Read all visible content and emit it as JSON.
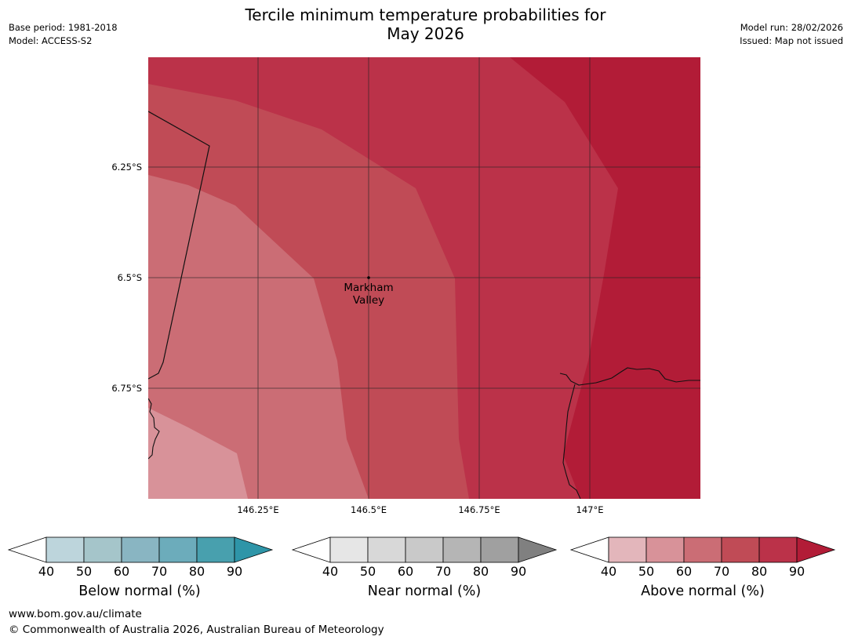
{
  "header": {
    "title_line1": "Tercile minimum temperature probabilities for",
    "title_line2": "May 2026",
    "base_period": "Base period: 1981-2018",
    "model": "Model: ACCESS-S2",
    "model_run": "Model run: 28/02/2026",
    "issued": "Issued: Map not issued"
  },
  "map": {
    "latitude_labels": [
      "6.25°S",
      "6.5°S",
      "6.75°S"
    ],
    "longitude_labels": [
      "146.25°E",
      "146.5°E",
      "146.75°E",
      "147°E"
    ],
    "place": {
      "name_line1": "Markham",
      "name_line2": "Valley"
    },
    "probability_bands_percent": [
      50,
      60,
      70,
      80,
      90
    ]
  },
  "colorbars": [
    {
      "label": "Below normal (%)",
      "ticks": [
        "40",
        "50",
        "60",
        "70",
        "80",
        "90"
      ],
      "colors": [
        "#bdd5dc",
        "#a5c5ca",
        "#89b5c2",
        "#6cacbb",
        "#48a0ae",
        "#2e95a8"
      ]
    },
    {
      "label": "Near normal (%)",
      "ticks": [
        "40",
        "50",
        "60",
        "70",
        "80",
        "90"
      ],
      "colors": [
        "#e6e6e6",
        "#d8d8d8",
        "#c9c9c9",
        "#b5b5b5",
        "#a0a0a0",
        "#808080"
      ]
    },
    {
      "label": "Above normal (%)",
      "ticks": [
        "40",
        "50",
        "60",
        "70",
        "80",
        "90"
      ],
      "colors": [
        "#e3b6bb",
        "#d89299",
        "#cb6d75",
        "#c04b56",
        "#bb3249",
        "#b21c37"
      ]
    }
  ],
  "footer": {
    "url": "www.bom.gov.au/climate",
    "copyright": "© Commonwealth of Australia 2026, Australian Bureau of Meteorology"
  }
}
